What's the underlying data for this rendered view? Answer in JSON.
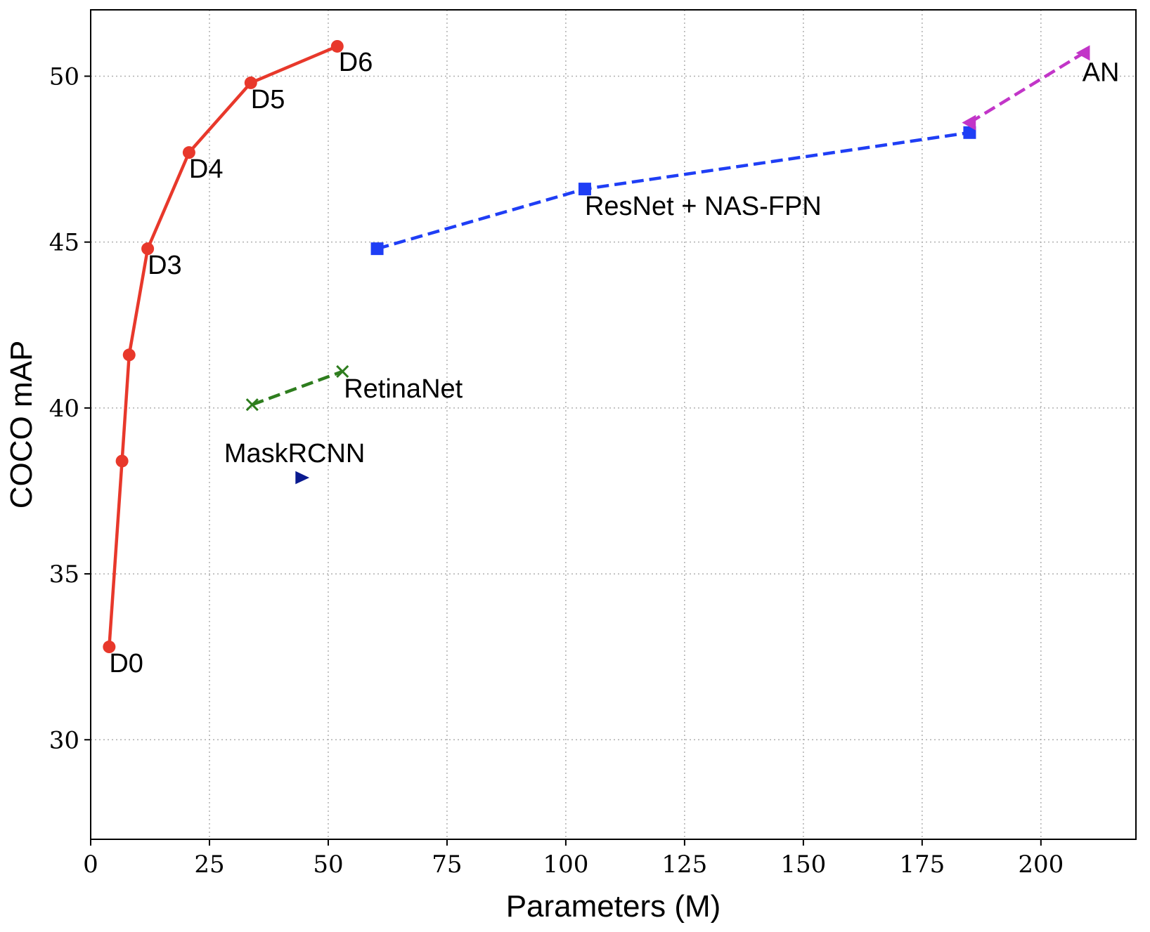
{
  "chart_data": {
    "type": "line",
    "title": "",
    "xlabel": "Parameters (M)",
    "ylabel": "COCO mAP",
    "xlim": [
      0,
      220
    ],
    "ylim": [
      27,
      52
    ],
    "xticks": [
      0,
      25,
      50,
      75,
      100,
      125,
      150,
      175,
      200
    ],
    "yticks": [
      30,
      35,
      40,
      45,
      50
    ],
    "grid": true,
    "legend": "none",
    "series": [
      {
        "color": "#e8382b",
        "line": "solid",
        "marker": "circle",
        "x": [
          3.9,
          6.6,
          8.1,
          12,
          20.7,
          33.7,
          51.9
        ],
        "y": [
          32.8,
          38.4,
          41.6,
          44.8,
          47.7,
          49.8,
          50.9
        ]
      },
      {
        "color": "#1f3ef5",
        "line": "dashed",
        "marker": "square",
        "x": [
          60.3,
          104,
          185
        ],
        "y": [
          44.8,
          46.6,
          48.3
        ]
      },
      {
        "color": "#c235c8",
        "line": "dashed",
        "marker": "triangle-left",
        "x": [
          185,
          209
        ],
        "y": [
          48.6,
          50.7
        ]
      },
      {
        "color": "#2e7d1e",
        "line": "dashed",
        "marker": "x",
        "x": [
          34,
          53
        ],
        "y": [
          40.1,
          41.1
        ]
      },
      {
        "color": "#0a1a8f",
        "line": "none",
        "marker": "triangle-right",
        "x": [
          44.4
        ],
        "y": [
          37.9
        ]
      }
    ],
    "annotations": [
      {
        "text": "D0",
        "x": 3.9,
        "y": 32.8
      },
      {
        "text": "D3",
        "x": 12,
        "y": 44.8
      },
      {
        "text": "D4",
        "x": 20.7,
        "y": 47.7
      },
      {
        "text": "D5",
        "x": 33.7,
        "y": 49.8
      },
      {
        "text": "D6",
        "x": 51.9,
        "y": 50.9
      },
      {
        "text": "ResNet + NAS-FPN",
        "x": 104,
        "y": 46.6
      },
      {
        "text": "AN",
        "x": 209,
        "y": 50.7
      },
      {
        "text": "RetinaNet",
        "x": 53,
        "y": 41.1
      },
      {
        "text": "MaskRCNN",
        "x": 44.4,
        "y": 37.9
      }
    ]
  }
}
